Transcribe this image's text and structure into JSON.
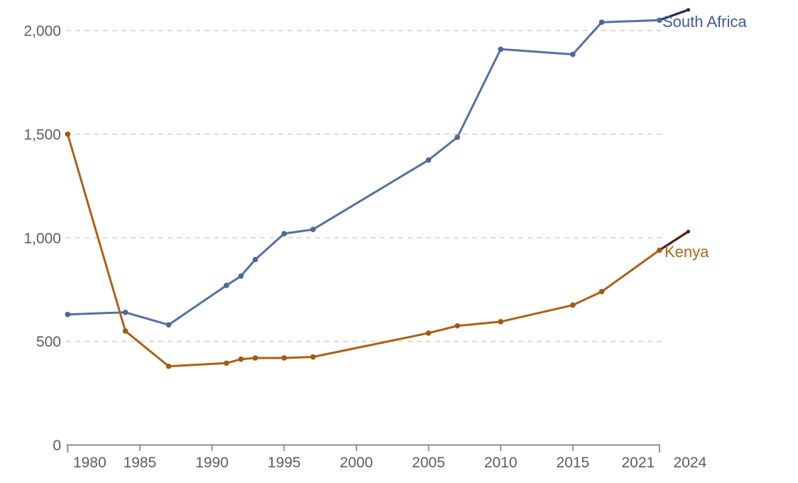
{
  "chart_data": {
    "type": "line",
    "x_axis": {
      "range": [
        1980,
        2024
      ],
      "ticks": [
        {
          "year": 1980,
          "label": "1980",
          "dx": 31,
          "mark": "bracket"
        },
        {
          "year": 1985,
          "label": "1985",
          "dx": 0,
          "mark": "tick"
        },
        {
          "year": 1990,
          "label": "1990",
          "dx": 0,
          "mark": "tick"
        },
        {
          "year": 1995,
          "label": "1995",
          "dx": 0,
          "mark": "tick"
        },
        {
          "year": 2000,
          "label": "2000",
          "dx": 0,
          "mark": "tick"
        },
        {
          "year": 2005,
          "label": "2005",
          "dx": 0,
          "mark": "tick"
        },
        {
          "year": 2010,
          "label": "2010",
          "dx": 0,
          "mark": "tick"
        },
        {
          "year": 2015,
          "label": "2015",
          "dx": 0,
          "mark": "tick"
        },
        {
          "year": 2021,
          "label": "2021",
          "dx": -30,
          "mark": "bracket"
        },
        {
          "year": 2024,
          "label": "2024",
          "dx": -18,
          "mark": "none"
        }
      ]
    },
    "y_axis": {
      "range": [
        0,
        2000
      ],
      "gridlines": "dashed",
      "ticks": [
        {
          "value": 0,
          "label": "0"
        },
        {
          "value": 500,
          "label": "500"
        },
        {
          "value": 1000,
          "label": "1,000"
        },
        {
          "value": 1500,
          "label": "1,500"
        },
        {
          "value": 2000,
          "label": "2,000"
        }
      ]
    },
    "legend_position": "end-of-line-labels",
    "series": [
      {
        "name": "South Africa",
        "color": "#54719f",
        "marker_color": "#4c6896",
        "label_color": "#3e5c99",
        "x": [
          1980,
          1984,
          1987,
          1991,
          1992,
          1993,
          1995,
          1997,
          2005,
          2007,
          2010,
          2015,
          2017,
          2021
        ],
        "values": [
          630,
          640,
          580,
          770,
          815,
          895,
          1020,
          1040,
          1375,
          1485,
          1910,
          1885,
          2040,
          2050
        ],
        "projection": {
          "color": "#222c55",
          "x": [
            2021,
            2023
          ],
          "values": [
            2050,
            2100
          ]
        }
      },
      {
        "name": "Kenya",
        "color": "#ab6118",
        "marker_color": "#9f5a12",
        "label_color": "#ad671c",
        "x": [
          1980,
          1984,
          1987,
          1991,
          1992,
          1993,
          1995,
          1997,
          2005,
          2007,
          2010,
          2015,
          2017,
          2021
        ],
        "values": [
          1500,
          550,
          380,
          395,
          414,
          420,
          420,
          425,
          540,
          575,
          595,
          675,
          740,
          940
        ],
        "projection": {
          "color": "#5c1d0e",
          "x": [
            2021,
            2023
          ],
          "values": [
            940,
            1030
          ]
        }
      }
    ],
    "style": {
      "grid_color": "#d6d6d6",
      "axis_color": "#8b8b8b",
      "tick_label_color": "#5d5d5d",
      "background": "#ffffff"
    }
  }
}
